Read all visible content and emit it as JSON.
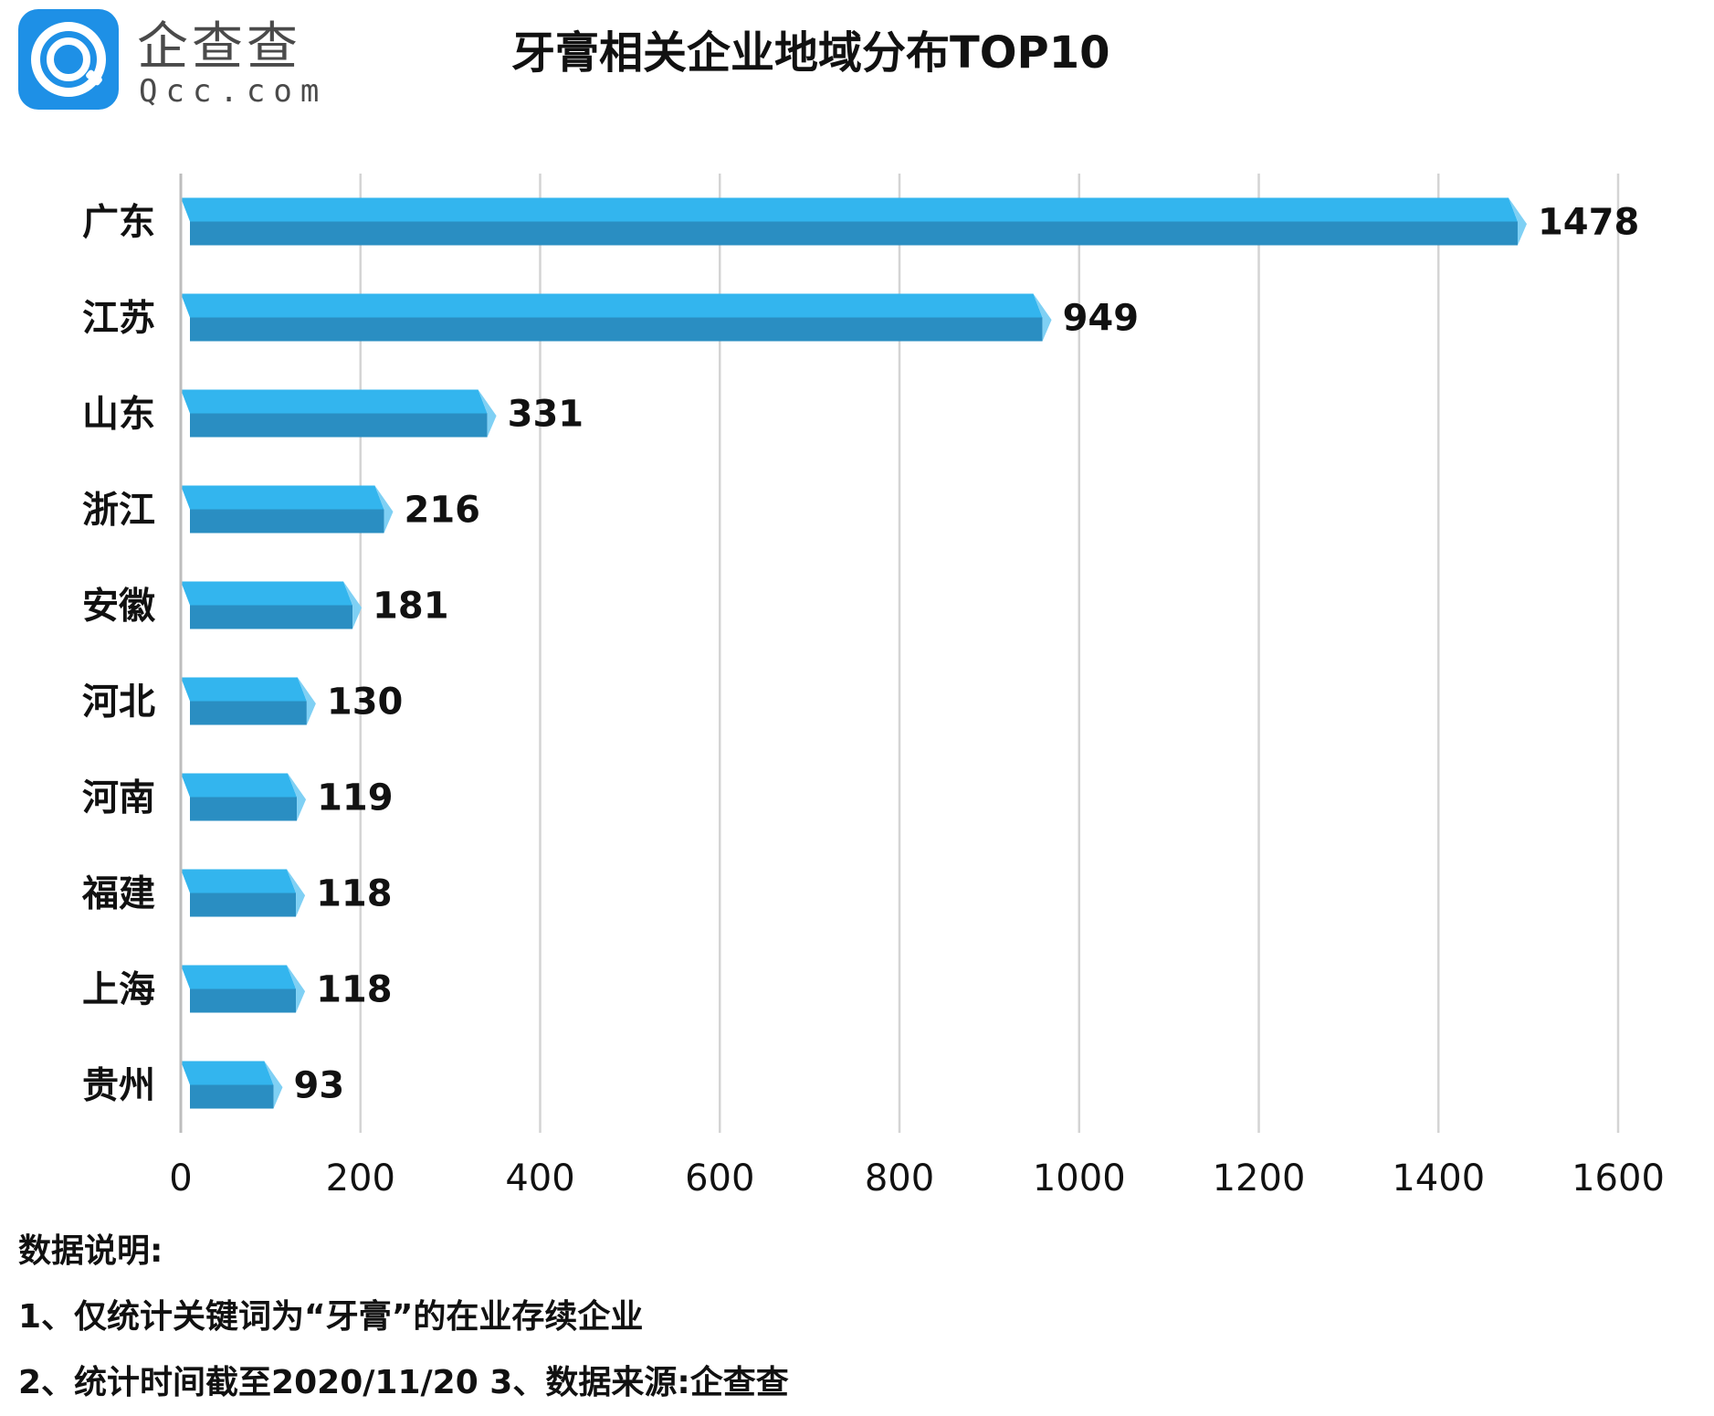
{
  "logo": {
    "cn": "企查查",
    "en": "Qcc.com",
    "brand_color": "#1e90e6"
  },
  "title": "牙膏相关企业地域分布TOP10",
  "chart_data": {
    "type": "bar",
    "orientation": "horizontal",
    "categories": [
      "广东",
      "江苏",
      "山东",
      "浙江",
      "安徽",
      "河北",
      "河南",
      "福建",
      "上海",
      "贵州"
    ],
    "values": [
      1478,
      949,
      331,
      216,
      181,
      130,
      119,
      118,
      118,
      93
    ],
    "data_labels": [
      "1478",
      "949",
      "331",
      "216",
      "181",
      "130",
      "119",
      "118",
      "118",
      "93"
    ],
    "x_ticks": [
      0,
      200,
      400,
      600,
      800,
      1000,
      1200,
      1400,
      1600
    ],
    "xlim": [
      0,
      1600
    ],
    "grid": "vertical",
    "bar_color": "#33b5ee",
    "bar_shade_color": "#2a8ec2"
  },
  "notes": {
    "heading": "数据说明:",
    "line1": "1、仅统计关键词为“牙膏”的在业存续企业",
    "line2": "2、统计时间截至2020/11/20   3、数据来源:企查查"
  }
}
